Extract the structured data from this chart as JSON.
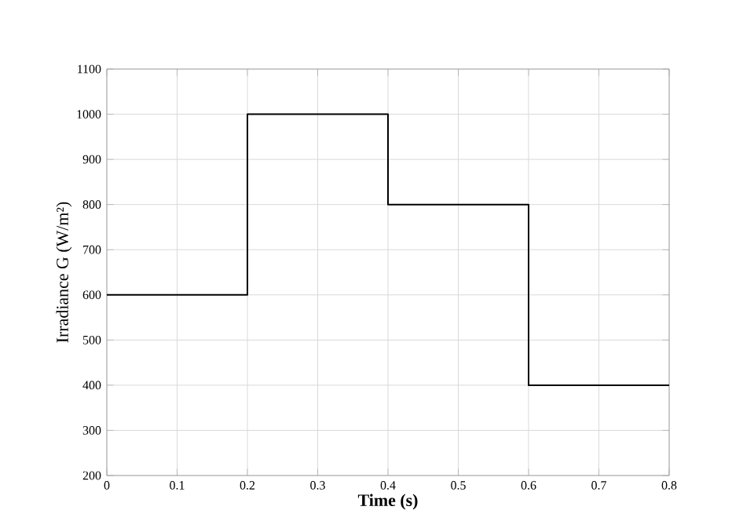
{
  "chart_data": {
    "type": "step",
    "xlabel": "Time (s)",
    "ylabel": "Irradiance G (W/m²)",
    "x": [
      0,
      0.2,
      0.4,
      0.6,
      0.8
    ],
    "values": [
      600,
      1000,
      800,
      400,
      400
    ],
    "color": "#000000",
    "xlim": [
      0,
      0.8
    ],
    "ylim": [
      200,
      1100
    ],
    "xticks": [
      0,
      0.1,
      0.2,
      0.3,
      0.4,
      0.5,
      0.6,
      0.7,
      0.8
    ],
    "yticks": [
      200,
      300,
      400,
      500,
      600,
      700,
      800,
      900,
      1000,
      1100
    ],
    "grid": true
  }
}
